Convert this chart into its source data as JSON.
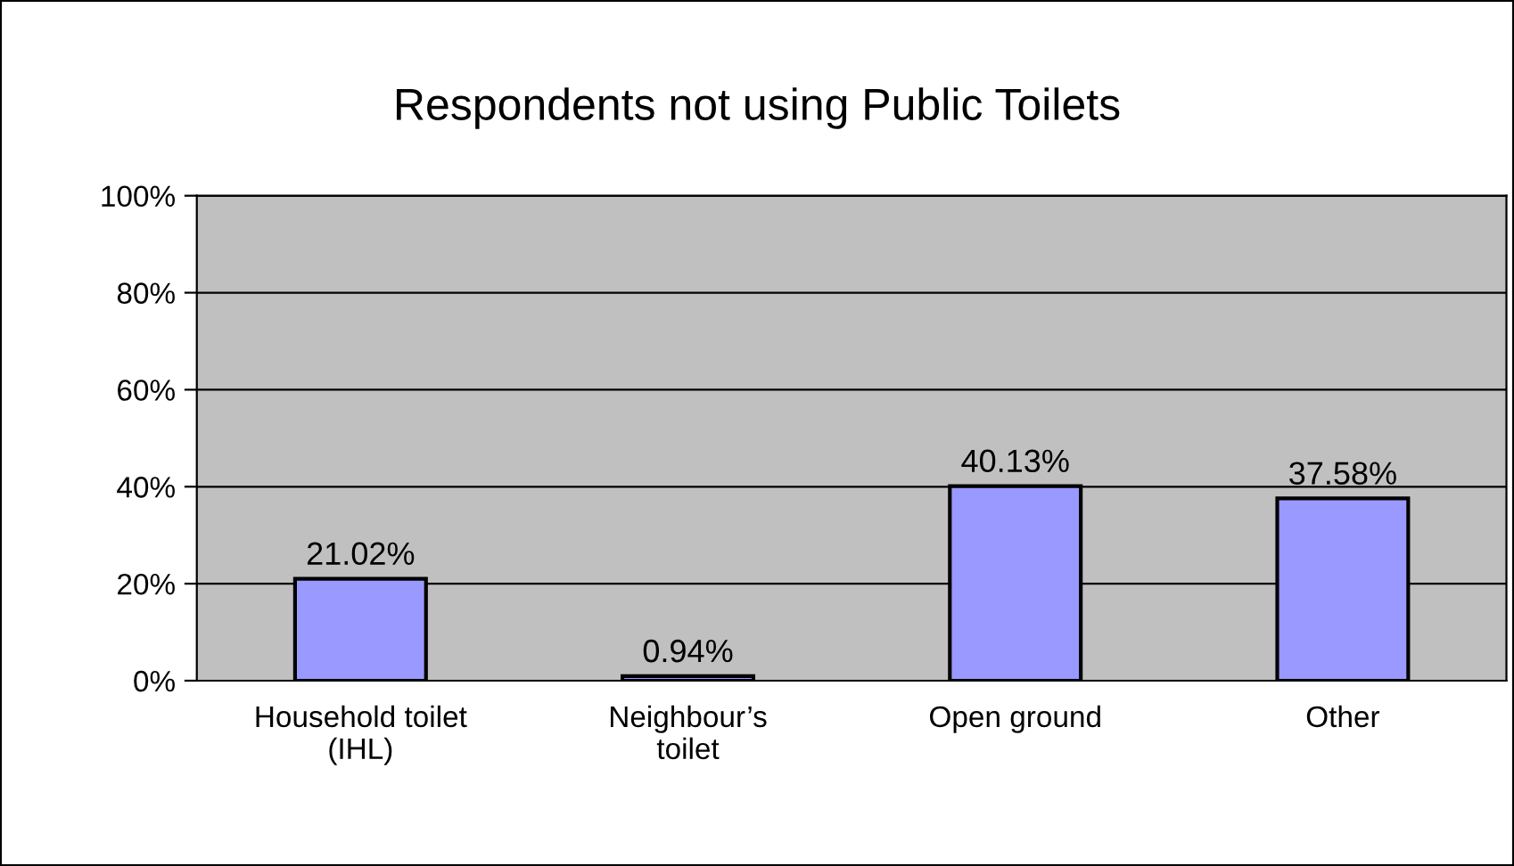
{
  "chart_data": {
    "type": "bar",
    "title": "Respondents not using Public Toilets",
    "categories": [
      "Household toilet\n(IHL)",
      "Neighbour’s\ntoilet",
      "Open ground",
      "Other"
    ],
    "values": [
      21.02,
      0.94,
      40.13,
      37.58
    ],
    "value_labels": [
      "21.02%",
      "0.94%",
      "40.13%",
      "37.58%"
    ],
    "color": "#9999ff",
    "ylim": [
      0,
      100
    ],
    "yticks": [
      {
        "value": 0,
        "label": "0%"
      },
      {
        "value": 20,
        "label": "20%"
      },
      {
        "value": 40,
        "label": "40%"
      },
      {
        "value": 60,
        "label": "60%"
      },
      {
        "value": 80,
        "label": "80%"
      },
      {
        "value": 100,
        "label": "100%"
      }
    ],
    "grid": "y"
  }
}
